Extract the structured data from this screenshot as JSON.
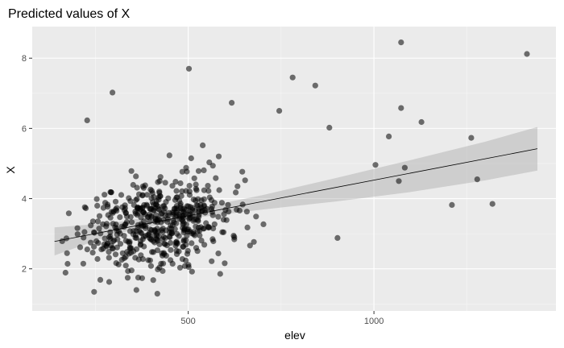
{
  "chart_data": {
    "type": "scatter",
    "title": "Predicted values of X",
    "xlabel": "elev",
    "ylabel": "X",
    "xlim": [
      80,
      1490
    ],
    "ylim": [
      0.8,
      8.9
    ],
    "x_ticks": [
      500,
      1000
    ],
    "x_tick_labels": [
      "500",
      "1000"
    ],
    "x_minor_ticks": [
      250,
      750,
      1250
    ],
    "y_ticks": [
      2,
      4,
      6,
      8
    ],
    "y_tick_labels": [
      "2",
      "4",
      "6",
      "8"
    ],
    "y_minor_ticks": [
      1,
      3,
      5,
      7
    ],
    "grid": true,
    "legend": "none",
    "colors": {
      "panel": "#ebebeb",
      "points": "#000000",
      "band": "#999999",
      "line": "#000000"
    },
    "fit_line": {
      "x": [
        140,
        1440
      ],
      "y": [
        2.78,
        5.42
      ]
    },
    "confidence_band": {
      "x": [
        140,
        300,
        500,
        700,
        900,
        1100,
        1300,
        1440
      ],
      "lower": [
        2.38,
        2.99,
        3.43,
        3.69,
        3.92,
        4.19,
        4.52,
        4.8
      ],
      "upper": [
        3.18,
        3.31,
        3.67,
        4.1,
        4.59,
        5.1,
        5.62,
        6.04
      ]
    },
    "outliers": [
      {
        "x": 1073,
        "y": 8.45
      },
      {
        "x": 1412,
        "y": 8.12
      },
      {
        "x": 502,
        "y": 7.7
      },
      {
        "x": 781,
        "y": 7.45
      },
      {
        "x": 842,
        "y": 7.22
      },
      {
        "x": 296,
        "y": 7.02
      },
      {
        "x": 1073,
        "y": 6.58
      },
      {
        "x": 1128,
        "y": 6.18
      },
      {
        "x": 1040,
        "y": 5.77
      },
      {
        "x": 1262,
        "y": 5.73
      },
      {
        "x": 1004,
        "y": 4.96
      },
      {
        "x": 1083,
        "y": 4.88
      },
      {
        "x": 1067,
        "y": 4.5
      },
      {
        "x": 1210,
        "y": 3.82
      },
      {
        "x": 1278,
        "y": 4.55
      },
      {
        "x": 1319,
        "y": 3.85
      },
      {
        "x": 902,
        "y": 2.88
      },
      {
        "x": 228,
        "y": 6.23
      },
      {
        "x": 617,
        "y": 6.73
      },
      {
        "x": 745,
        "y": 6.5
      },
      {
        "x": 880,
        "y": 6.02
      }
    ],
    "bulk": {
      "n": 520,
      "x_range": [
        150,
        920
      ],
      "x_center": 420,
      "y_range": [
        1.05,
        6.9
      ],
      "y_at_x_min": 2.75,
      "slope_per_1000": 2.05,
      "spread": 0.95
    }
  }
}
